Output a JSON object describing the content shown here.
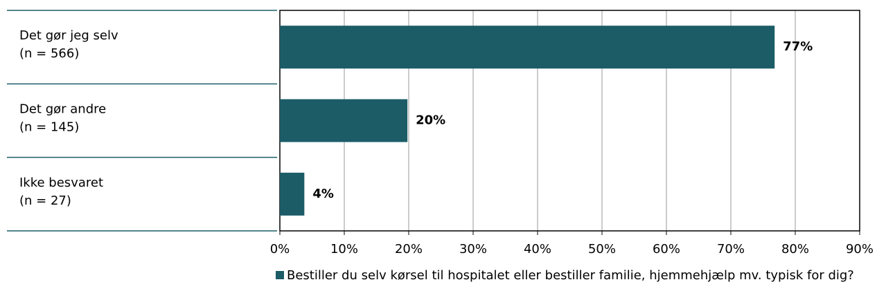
{
  "chart_data": {
    "type": "bar",
    "orientation": "horizontal",
    "categories": [
      "Det gør jeg selv",
      "Det gør andre",
      "Ikke besvaret"
    ],
    "category_counts": [
      "(n = 566)",
      "(n = 145)",
      "(n = 27)"
    ],
    "series": [
      {
        "name": "Bestiller du selv kørsel til hospitalet eller bestiller familie, hjemmehjælp mv. typisk for dig?",
        "color": "#1b5c67",
        "values": [
          76.8,
          19.8,
          3.8
        ],
        "value_labels": [
          "77%",
          "20%",
          "4%"
        ]
      }
    ],
    "xlim": [
      0,
      90
    ],
    "xticks": [
      {
        "value": 0,
        "label": "0%"
      },
      {
        "value": 10,
        "label": "10%"
      },
      {
        "value": 20,
        "label": "20%"
      },
      {
        "value": 30,
        "label": "30%"
      },
      {
        "value": 40,
        "label": "40%"
      },
      {
        "value": 50,
        "label": "50%"
      },
      {
        "value": 60,
        "label": "60%"
      },
      {
        "value": 70,
        "label": "70%"
      },
      {
        "value": 80,
        "label": "80%"
      },
      {
        "value": 90,
        "label": "90%"
      }
    ],
    "grid": true,
    "legend": "bottom"
  }
}
